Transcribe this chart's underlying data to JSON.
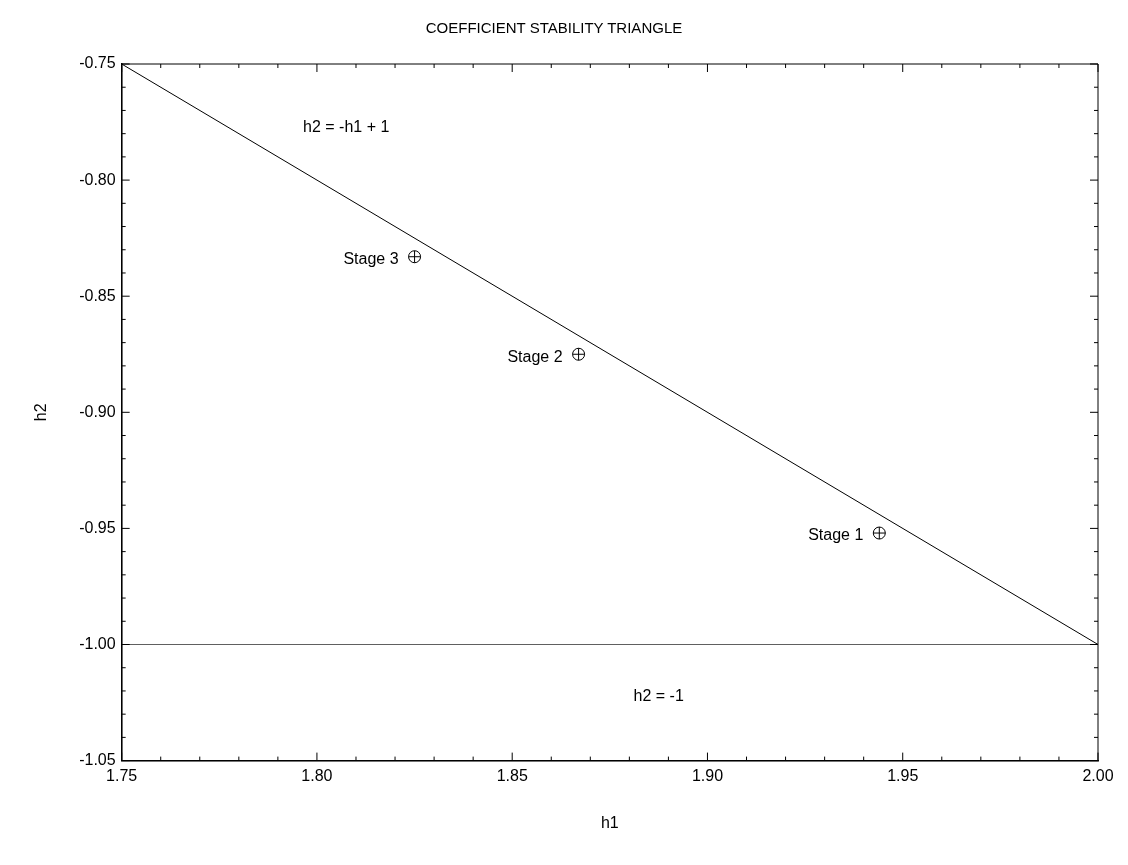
{
  "chart_data": {
    "type": "scatter",
    "title": "COEFFICIENT STABILITY TRIANGLE",
    "xlabel": "h1",
    "ylabel": "h2",
    "xlim": [
      1.75,
      2.0
    ],
    "ylim": [
      -1.05,
      -0.75
    ],
    "xticks": [
      {
        "value": 1.75,
        "label": "1.75"
      },
      {
        "value": 1.76,
        "label": null
      },
      {
        "value": 1.77,
        "label": null
      },
      {
        "value": 1.78,
        "label": null
      },
      {
        "value": 1.79,
        "label": null
      },
      {
        "value": 1.8,
        "label": "1.80"
      },
      {
        "value": 1.81,
        "label": null
      },
      {
        "value": 1.82,
        "label": null
      },
      {
        "value": 1.83,
        "label": null
      },
      {
        "value": 1.84,
        "label": null
      },
      {
        "value": 1.85,
        "label": "1.85"
      },
      {
        "value": 1.86,
        "label": null
      },
      {
        "value": 1.87,
        "label": null
      },
      {
        "value": 1.88,
        "label": null
      },
      {
        "value": 1.89,
        "label": null
      },
      {
        "value": 1.9,
        "label": "1.90"
      },
      {
        "value": 1.91,
        "label": null
      },
      {
        "value": 1.92,
        "label": null
      },
      {
        "value": 1.93,
        "label": null
      },
      {
        "value": 1.94,
        "label": null
      },
      {
        "value": 1.95,
        "label": "1.95"
      },
      {
        "value": 1.96,
        "label": null
      },
      {
        "value": 1.97,
        "label": null
      },
      {
        "value": 1.98,
        "label": null
      },
      {
        "value": 1.99,
        "label": null
      },
      {
        "value": 2.0,
        "label": "2.00"
      }
    ],
    "yticks": [
      {
        "value": -1.05,
        "label": "-1.05"
      },
      {
        "value": -1.04,
        "label": null
      },
      {
        "value": -1.03,
        "label": null
      },
      {
        "value": -1.02,
        "label": null
      },
      {
        "value": -1.01,
        "label": null
      },
      {
        "value": -1.0,
        "label": "-1.00"
      },
      {
        "value": -0.99,
        "label": null
      },
      {
        "value": -0.98,
        "label": null
      },
      {
        "value": -0.97,
        "label": null
      },
      {
        "value": -0.96,
        "label": null
      },
      {
        "value": -0.95,
        "label": "-0.95"
      },
      {
        "value": -0.94,
        "label": null
      },
      {
        "value": -0.93,
        "label": null
      },
      {
        "value": -0.92,
        "label": null
      },
      {
        "value": -0.91,
        "label": null
      },
      {
        "value": -0.9,
        "label": "-0.90"
      },
      {
        "value": -0.89,
        "label": null
      },
      {
        "value": -0.88,
        "label": null
      },
      {
        "value": -0.87,
        "label": null
      },
      {
        "value": -0.86,
        "label": null
      },
      {
        "value": -0.85,
        "label": "-0.85"
      },
      {
        "value": -0.84,
        "label": null
      },
      {
        "value": -0.83,
        "label": null
      },
      {
        "value": -0.82,
        "label": null
      },
      {
        "value": -0.81,
        "label": null
      },
      {
        "value": -0.8,
        "label": "-0.80"
      },
      {
        "value": -0.79,
        "label": null
      },
      {
        "value": -0.78,
        "label": null
      },
      {
        "value": -0.77,
        "label": null
      },
      {
        "value": -0.76,
        "label": null
      },
      {
        "value": -0.75,
        "label": "-0.75"
      }
    ],
    "grid": false,
    "legend": false,
    "marker": "circle",
    "series": [
      {
        "type": "line",
        "name": "h2 = -h1 + 1",
        "x": [
          1.75,
          2.0
        ],
        "values": [
          -0.75,
          -1.0
        ],
        "color": "#000000",
        "marker": "none"
      },
      {
        "type": "line",
        "name": "h2 = -1",
        "x": [
          1.75,
          2.0
        ],
        "values": [
          -1.0,
          -1.0
        ],
        "color": "#606060",
        "marker": "none"
      },
      {
        "name": "Stage 1",
        "x": [
          1.944
        ],
        "values": [
          -0.952
        ],
        "color": "#000000"
      },
      {
        "name": "Stage 2",
        "x": [
          1.867
        ],
        "values": [
          -0.875
        ],
        "color": "#000000"
      },
      {
        "name": "Stage 3",
        "x": [
          1.825
        ],
        "values": [
          -0.833
        ],
        "color": "#000000"
      }
    ]
  }
}
